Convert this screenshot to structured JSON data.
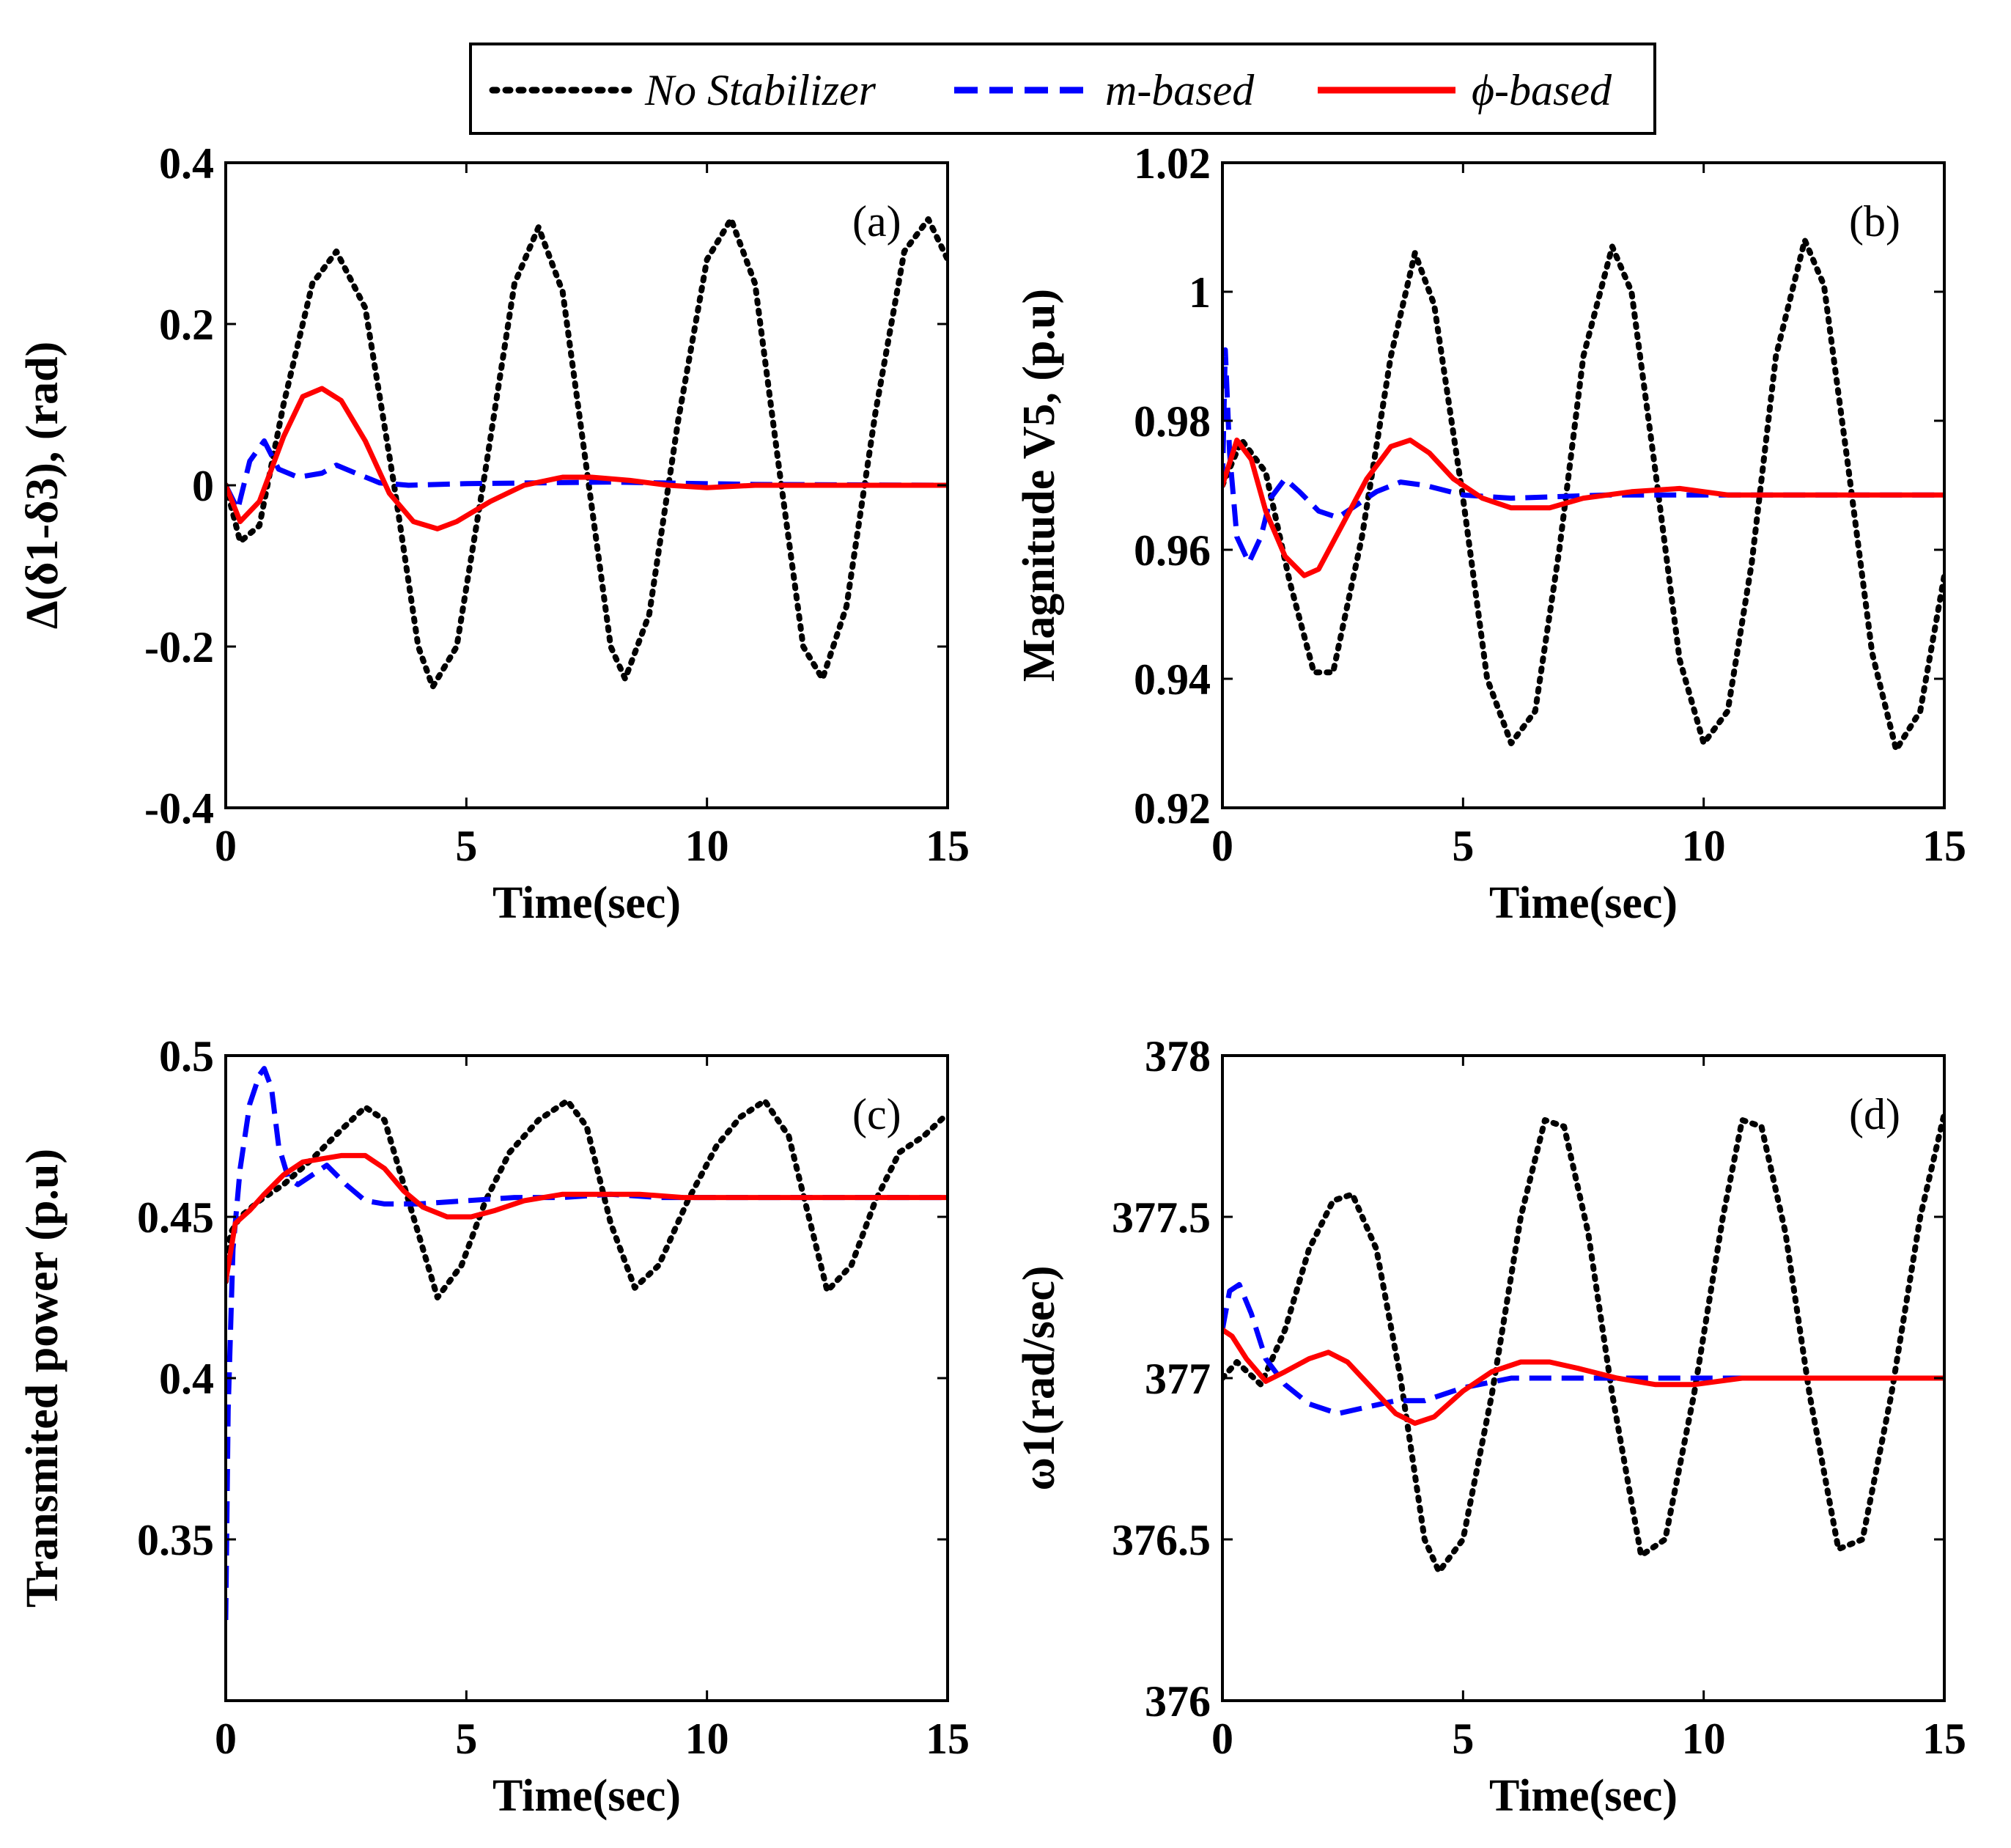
{
  "legend": {
    "items": [
      {
        "key": "none",
        "label": "No Stabilizer",
        "color": "#000000",
        "style": "dotted"
      },
      {
        "key": "m",
        "label": "m-based",
        "color": "#0000ff",
        "style": "dashed"
      },
      {
        "key": "phi",
        "label": "ϕ-based",
        "color": "#ff0000",
        "style": "solid"
      }
    ]
  },
  "chart_data": [
    {
      "type": "line",
      "panel": "(a)",
      "xlabel": "Time(sec)",
      "ylabel": "Δ(δ1-δ3), (rad)",
      "xlim": [
        0,
        15
      ],
      "ylim": [
        -0.4,
        0.4
      ],
      "xticks": [
        0,
        5,
        10,
        15
      ],
      "yticks": [
        -0.4,
        -0.2,
        0,
        0.2,
        0.4
      ],
      "ytick_labels": [
        "-0.4",
        "-0.2",
        "0",
        "0.2",
        "0.4"
      ],
      "series": [
        {
          "name": "No Stabilizer",
          "x": [
            0,
            0.3,
            0.7,
            1.2,
            1.8,
            2.3,
            2.9,
            3.5,
            4.0,
            4.3,
            4.8,
            5.4,
            6.0,
            6.5,
            7.0,
            7.5,
            8.0,
            8.3,
            8.8,
            9.4,
            10.0,
            10.5,
            11.0,
            11.5,
            12.0,
            12.4,
            12.9,
            13.5,
            14.1,
            14.6,
            15.0
          ],
          "y": [
            0,
            -0.07,
            -0.05,
            0.1,
            0.25,
            0.29,
            0.22,
            0.0,
            -0.2,
            -0.25,
            -0.2,
            0.02,
            0.25,
            0.32,
            0.24,
            0.02,
            -0.2,
            -0.24,
            -0.16,
            0.08,
            0.28,
            0.33,
            0.25,
            0.02,
            -0.2,
            -0.24,
            -0.15,
            0.09,
            0.29,
            0.33,
            0.28
          ]
        },
        {
          "name": "m-based",
          "x": [
            0,
            0.25,
            0.5,
            0.8,
            1.1,
            1.5,
            2.0,
            2.3,
            2.7,
            3.2,
            3.8,
            5,
            8,
            11,
            15
          ],
          "y": [
            0,
            -0.03,
            0.03,
            0.055,
            0.02,
            0.01,
            0.015,
            0.025,
            0.015,
            0.003,
            0.0,
            0.002,
            0.004,
            0.001,
            0.0
          ]
        },
        {
          "name": "ϕ-based",
          "x": [
            0,
            0.3,
            0.7,
            1.2,
            1.6,
            2.0,
            2.4,
            2.9,
            3.4,
            3.9,
            4.4,
            4.8,
            5.5,
            6.2,
            7.0,
            7.6,
            8.4,
            9.2,
            10.0,
            11,
            13,
            15
          ],
          "y": [
            0,
            -0.045,
            -0.02,
            0.06,
            0.11,
            0.12,
            0.105,
            0.055,
            -0.01,
            -0.045,
            -0.054,
            -0.045,
            -0.02,
            0.0,
            0.01,
            0.01,
            0.006,
            0.0,
            -0.003,
            0.0,
            0.0,
            0.0
          ]
        }
      ]
    },
    {
      "type": "line",
      "panel": "(b)",
      "xlabel": "Time(sec)",
      "ylabel": "Magnitude V5, (p.u)",
      "xlim": [
        0,
        15
      ],
      "ylim": [
        0.92,
        1.02
      ],
      "xticks": [
        0,
        5,
        10,
        15
      ],
      "yticks": [
        0.92,
        0.94,
        0.96,
        0.98,
        1.0,
        1.02
      ],
      "ytick_labels": [
        "0.92",
        "0.94",
        "0.96",
        "0.98",
        "1",
        "1.02"
      ],
      "series": [
        {
          "name": "No Stabilizer",
          "x": [
            0,
            0.4,
            0.9,
            1.4,
            1.9,
            2.3,
            2.9,
            3.5,
            4.0,
            4.4,
            5.0,
            5.5,
            6.0,
            6.5,
            7.0,
            7.5,
            8.1,
            8.5,
            9.0,
            9.5,
            10.0,
            10.5,
            11.0,
            11.5,
            12.1,
            12.5,
            13.0,
            13.5,
            14.0,
            14.5,
            15.0
          ],
          "y": [
            0.97,
            0.977,
            0.972,
            0.955,
            0.941,
            0.941,
            0.962,
            0.99,
            1.006,
            0.998,
            0.968,
            0.94,
            0.93,
            0.935,
            0.96,
            0.99,
            1.007,
            1.0,
            0.972,
            0.943,
            0.93,
            0.935,
            0.958,
            0.99,
            1.008,
            1.001,
            0.973,
            0.944,
            0.929,
            0.935,
            0.956
          ]
        },
        {
          "name": "m-based",
          "x": [
            0,
            0.06,
            0.15,
            0.3,
            0.55,
            0.8,
            1.0,
            1.3,
            1.6,
            2.0,
            2.4,
            2.8,
            3.2,
            3.7,
            4.2,
            5.0,
            6.0,
            8.0,
            10.0,
            15.0
          ],
          "y": [
            0.97,
            0.991,
            0.975,
            0.962,
            0.958,
            0.962,
            0.968,
            0.971,
            0.969,
            0.966,
            0.965,
            0.967,
            0.969,
            0.9705,
            0.97,
            0.9685,
            0.968,
            0.9685,
            0.9685,
            0.9685
          ]
        },
        {
          "name": "ϕ-based",
          "x": [
            0,
            0.3,
            0.6,
            0.9,
            1.3,
            1.7,
            2.0,
            2.5,
            3.0,
            3.5,
            3.9,
            4.3,
            4.8,
            5.4,
            6.0,
            6.8,
            7.5,
            8.5,
            9.5,
            10.5,
            12,
            15
          ],
          "y": [
            0.97,
            0.977,
            0.974,
            0.966,
            0.959,
            0.956,
            0.957,
            0.964,
            0.971,
            0.976,
            0.977,
            0.975,
            0.971,
            0.968,
            0.9665,
            0.9665,
            0.968,
            0.969,
            0.9695,
            0.9685,
            0.9685,
            0.9685
          ]
        }
      ]
    },
    {
      "type": "line",
      "panel": "(c)",
      "xlabel": "Time(sec)",
      "ylabel": "Transmited power (p.u)",
      "xlim": [
        0,
        15
      ],
      "ylim": [
        0.3,
        0.5
      ],
      "xticks": [
        0,
        5,
        10,
        15
      ],
      "yticks": [
        0.35,
        0.4,
        0.45,
        0.5
      ],
      "ytick_labels": [
        "0.35",
        "0.4",
        "0.45",
        "0.5"
      ],
      "series": [
        {
          "name": "No Stabilizer",
          "x": [
            0,
            0.1,
            0.3,
            0.7,
            1.2,
            1.8,
            2.4,
            2.9,
            3.3,
            3.8,
            4.4,
            4.9,
            5.4,
            5.9,
            6.5,
            7.1,
            7.5,
            8.0,
            8.5,
            9.0,
            9.6,
            10.2,
            10.7,
            11.2,
            11.7,
            12.2,
            12.5,
            13.0,
            13.5,
            14.0,
            14.5,
            15.0
          ],
          "y": [
            0.43,
            0.445,
            0.45,
            0.455,
            0.46,
            0.468,
            0.477,
            0.484,
            0.48,
            0.455,
            0.425,
            0.435,
            0.455,
            0.47,
            0.48,
            0.486,
            0.478,
            0.448,
            0.428,
            0.435,
            0.455,
            0.472,
            0.481,
            0.486,
            0.475,
            0.445,
            0.427,
            0.435,
            0.455,
            0.47,
            0.475,
            0.482
          ]
        },
        {
          "name": "m-based",
          "x": [
            0,
            0.05,
            0.15,
            0.3,
            0.5,
            0.7,
            0.8,
            0.95,
            1.1,
            1.3,
            1.5,
            1.8,
            2.1,
            2.5,
            2.9,
            3.3,
            4.0,
            5.0,
            6.0,
            7.0,
            8.0,
            9.0,
            10.0,
            11.0,
            12.0,
            13.0,
            14.0,
            15.0
          ],
          "y": [
            0.325,
            0.39,
            0.44,
            0.465,
            0.485,
            0.494,
            0.496,
            0.49,
            0.472,
            0.462,
            0.46,
            0.463,
            0.466,
            0.46,
            0.455,
            0.454,
            0.454,
            0.455,
            0.456,
            0.456,
            0.457,
            0.456,
            0.456,
            0.456,
            0.456,
            0.456,
            0.456,
            0.456
          ]
        },
        {
          "name": "ϕ-based",
          "x": [
            0,
            0.2,
            0.5,
            0.8,
            1.2,
            1.6,
            2.0,
            2.4,
            2.9,
            3.3,
            3.7,
            4.1,
            4.6,
            5.1,
            5.6,
            6.2,
            7.0,
            7.8,
            8.6,
            9.5,
            10.5,
            12,
            15
          ],
          "y": [
            0.43,
            0.448,
            0.452,
            0.457,
            0.463,
            0.467,
            0.468,
            0.469,
            0.469,
            0.465,
            0.458,
            0.453,
            0.45,
            0.45,
            0.452,
            0.455,
            0.457,
            0.457,
            0.457,
            0.456,
            0.456,
            0.456,
            0.456
          ]
        }
      ]
    },
    {
      "type": "line",
      "panel": "(d)",
      "xlabel": "Time(sec)",
      "ylabel": "ω1(rad/sec)",
      "xlim": [
        0,
        15
      ],
      "ylim": [
        376,
        378
      ],
      "xticks": [
        0,
        5,
        10,
        15
      ],
      "yticks": [
        376,
        376.5,
        377,
        377.5,
        378
      ],
      "ytick_labels": [
        "376",
        "376.5",
        "377",
        "377.5",
        "378"
      ],
      "series": [
        {
          "name": "No Stabilizer",
          "x": [
            0,
            0.3,
            0.8,
            1.3,
            1.8,
            2.3,
            2.7,
            3.2,
            3.7,
            4.2,
            4.5,
            5.0,
            5.6,
            6.2,
            6.7,
            7.1,
            7.6,
            8.1,
            8.7,
            9.2,
            9.8,
            10.4,
            10.8,
            11.2,
            11.7,
            12.2,
            12.8,
            13.3,
            13.9,
            14.5,
            15.0
          ],
          "y": [
            377.0,
            377.05,
            376.98,
            377.15,
            377.4,
            377.55,
            377.57,
            377.4,
            377.0,
            376.5,
            376.4,
            376.5,
            376.95,
            377.5,
            377.8,
            377.78,
            377.45,
            376.95,
            376.45,
            376.5,
            376.95,
            377.5,
            377.8,
            377.78,
            377.45,
            376.95,
            376.47,
            376.5,
            376.95,
            377.5,
            377.82
          ]
        },
        {
          "name": "m-based",
          "x": [
            0,
            0.15,
            0.35,
            0.6,
            0.9,
            1.3,
            1.8,
            2.4,
            3.0,
            3.6,
            4.2,
            5.0,
            6.0,
            7.0,
            8.0,
            9.0,
            10.0,
            11.0,
            12.0,
            15.0
          ],
          "y": [
            377.15,
            377.27,
            377.29,
            377.2,
            377.06,
            376.98,
            376.92,
            376.89,
            376.91,
            376.93,
            376.93,
            376.97,
            377.0,
            377.0,
            377.0,
            377.0,
            377.0,
            377.0,
            377.0,
            377.0
          ]
        },
        {
          "name": "ϕ-based",
          "x": [
            0,
            0.2,
            0.5,
            0.9,
            1.3,
            1.8,
            2.2,
            2.6,
            3.1,
            3.6,
            4.0,
            4.4,
            5.0,
            5.6,
            6.2,
            6.8,
            7.4,
            8.2,
            9.0,
            9.8,
            10.8,
            12,
            15
          ],
          "y": [
            377.15,
            377.13,
            377.06,
            376.99,
            377.02,
            377.06,
            377.08,
            377.05,
            376.97,
            376.89,
            376.86,
            376.88,
            376.96,
            377.02,
            377.05,
            377.05,
            377.03,
            377.0,
            376.98,
            376.98,
            377.0,
            377.0,
            377.0
          ]
        }
      ]
    }
  ]
}
